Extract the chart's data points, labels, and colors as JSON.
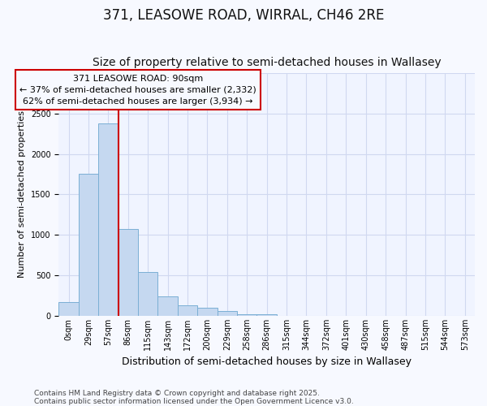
{
  "title": "371, LEASOWE ROAD, WIRRAL, CH46 2RE",
  "subtitle": "Size of property relative to semi-detached houses in Wallasey",
  "xlabel": "Distribution of semi-detached houses by size in Wallasey",
  "ylabel": "Number of semi-detached properties",
  "bar_labels": [
    "0sqm",
    "29sqm",
    "57sqm",
    "86sqm",
    "115sqm",
    "143sqm",
    "172sqm",
    "200sqm",
    "229sqm",
    "258sqm",
    "286sqm",
    "315sqm",
    "344sqm",
    "372sqm",
    "401sqm",
    "430sqm",
    "458sqm",
    "487sqm",
    "515sqm",
    "544sqm",
    "573sqm"
  ],
  "bar_values": [
    175,
    1750,
    2380,
    1070,
    540,
    240,
    130,
    100,
    60,
    25,
    25,
    0,
    0,
    0,
    0,
    0,
    0,
    0,
    0,
    0,
    0
  ],
  "bar_color": "#c5d8f0",
  "bar_edgecolor": "#7bafd4",
  "vline_position": 2.5,
  "vline_color": "#cc0000",
  "annotation_title": "371 LEASOWE ROAD: 90sqm",
  "annotation_line1": "← 37% of semi-detached houses are smaller (2,332)",
  "annotation_line2": "62% of semi-detached houses are larger (3,934) →",
  "ylim_max": 3000,
  "background_color": "#f7f9ff",
  "plot_bg_color": "#f0f4ff",
  "grid_color": "#d0d8f0",
  "footer_line1": "Contains HM Land Registry data © Crown copyright and database right 2025.",
  "footer_line2": "Contains public sector information licensed under the Open Government Licence v3.0.",
  "title_fontsize": 12,
  "subtitle_fontsize": 10,
  "xlabel_fontsize": 9,
  "ylabel_fontsize": 8,
  "tick_fontsize": 7,
  "annot_fontsize": 8,
  "footer_fontsize": 6.5
}
